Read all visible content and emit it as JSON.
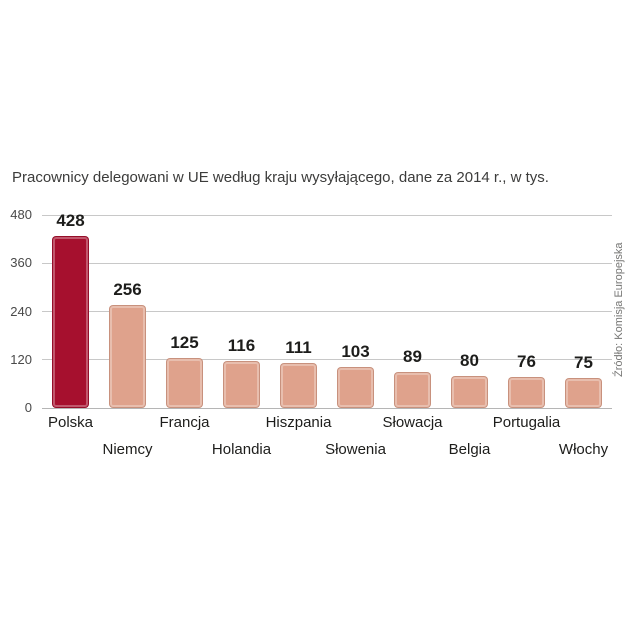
{
  "title": "Pracownicy delegowani w UE według kraju wysyłającego, dane za 2014 r., w tys.",
  "source": "Źródło: Komisja Europejska",
  "colors": {
    "highlight_bar": "#a6102e",
    "default_bar": "#dfa28c",
    "grid": "#c8c8c8",
    "axis_text": "#4a4a4a",
    "value_text": "#1d1d1b",
    "title_text": "#3c3c3b",
    "source_text": "#767674",
    "background": "#ffffff"
  },
  "chart_data": {
    "type": "bar",
    "title": "Pracownicy delegowani w UE według kraju wysyłającego, dane za 2014 r., w tys.",
    "categories": [
      "Polska",
      "Niemcy",
      "Francja",
      "Holandia",
      "Hiszpania",
      "Słowenia",
      "Słowacja",
      "Belgia",
      "Portugalia",
      "Włochy"
    ],
    "values": [
      428,
      256,
      125,
      116,
      111,
      103,
      89,
      80,
      76,
      75
    ],
    "xlabel": "",
    "ylabel": "",
    "ylim": [
      0,
      480
    ],
    "yticks": [
      0,
      120,
      240,
      360,
      480
    ],
    "grid": true,
    "legend": "none",
    "highlight_index": 0,
    "bar_colors": {
      "highlight": "#a6102e",
      "default": "#dfa28c"
    },
    "label_rows": "staggered-two-rows",
    "source": "Źródło: Komisja Europejska"
  }
}
